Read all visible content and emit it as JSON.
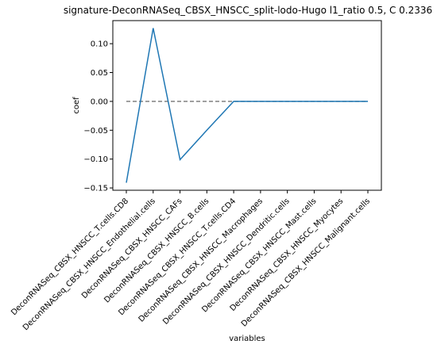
{
  "chart_data": {
    "type": "line",
    "title": "signature-DeconRNASeq_CBSX_HNSCC_split-lodo-Hugo l1_ratio 0.5, C 0.2336",
    "xlabel": "variables",
    "ylabel": "coef",
    "categories": [
      "DeconRNASeq_CBSX_HNSCC_T.cells.CD8",
      "DeconRNASeq_CBSX_HNSCC_Endothelial.cells",
      "DeconRNASeq_CBSX_HNSCC_CAFs",
      "DeconRNASeq_CBSX_HNSCC_B.cells",
      "DeconRNASeq_CBSX_HNSCC_T.cells.CD4",
      "DeconRNASeq_CBSX_HNSCC_Macrophages",
      "DeconRNASeq_CBSX_HNSCC_Dendritic.cells",
      "DeconRNASeq_CBSX_HNSCC_Mast.cells",
      "DeconRNASeq_CBSX_HNSCC_Myocytes",
      "DeconRNASeq_CBSX_HNSCC_Malignant.cells"
    ],
    "series": [
      {
        "values": [
          -0.141,
          0.127,
          -0.101,
          -0.05,
          0.0,
          0.0,
          0.0,
          0.0,
          0.0,
          0.0
        ],
        "color": "#1f77b4"
      }
    ],
    "reference_line": {
      "y": 0.0,
      "style": "dashed",
      "color": "#808080"
    },
    "yticks": [
      -0.15,
      -0.1,
      -0.05,
      0.0,
      0.05,
      0.1
    ],
    "ytick_labels": [
      "−0.15",
      "−0.10",
      "−0.05",
      "0.00",
      "0.05",
      "0.10"
    ],
    "ylim": [
      -0.154,
      0.14
    ],
    "grid": false
  }
}
